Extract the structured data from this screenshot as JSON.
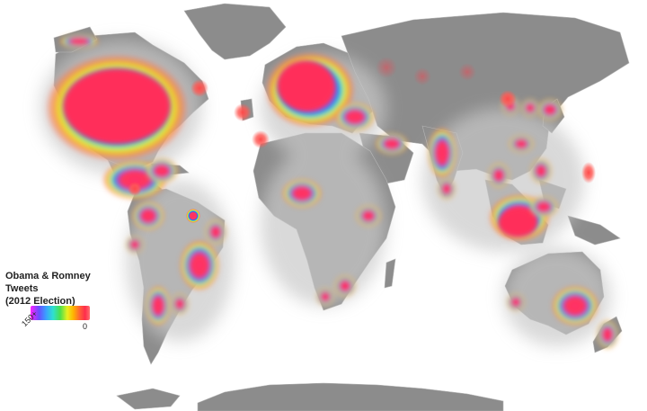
{
  "legend": {
    "title_line1": "Obama & Romney Tweets",
    "title_line2": "(2012 Election)",
    "low_label": "150+",
    "high_label": "0"
  },
  "colors": {
    "ocean": "#ffffff",
    "land": "#8c8c8c",
    "border": "#a8a8a8",
    "halo": "#c9c9c9",
    "heat_low": "#ff5a55",
    "heat_mid": "#e8f020",
    "heat_high": "#4a66ff",
    "heat_peak": "#ff2fd0"
  }
}
